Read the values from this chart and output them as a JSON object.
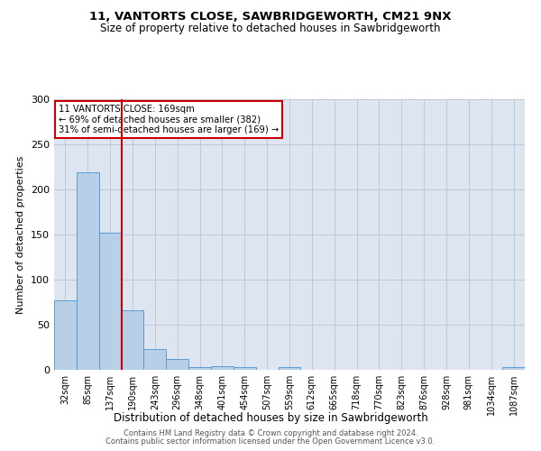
{
  "title1": "11, VANTORTS CLOSE, SAWBRIDGEWORTH, CM21 9NX",
  "title2": "Size of property relative to detached houses in Sawbridgeworth",
  "xlabel": "Distribution of detached houses by size in Sawbridgeworth",
  "ylabel": "Number of detached properties",
  "bar_color": "#b8cfe8",
  "bar_edge_color": "#5b9bd5",
  "grid_color": "#c0c8d8",
  "background_color": "#dde5f0",
  "bins": [
    "32sqm",
    "85sqm",
    "137sqm",
    "190sqm",
    "243sqm",
    "296sqm",
    "348sqm",
    "401sqm",
    "454sqm",
    "507sqm",
    "559sqm",
    "612sqm",
    "665sqm",
    "718sqm",
    "770sqm",
    "823sqm",
    "876sqm",
    "928sqm",
    "981sqm",
    "1034sqm",
    "1087sqm"
  ],
  "values": [
    77,
    219,
    152,
    66,
    23,
    12,
    3,
    4,
    3,
    0,
    3,
    0,
    0,
    0,
    0,
    0,
    0,
    0,
    0,
    0,
    3
  ],
  "red_line_x": 2.5,
  "red_line_label1": "11 VANTORTS CLOSE: 169sqm",
  "red_line_label2": "← 69% of detached houses are smaller (382)",
  "red_line_label3": "31% of semi-detached houses are larger (169) →",
  "annotation_box_color": "#ffffff",
  "annotation_border_color": "#cc0000",
  "vline_color": "#cc0000",
  "ylim": [
    0,
    300
  ],
  "yticks": [
    0,
    50,
    100,
    150,
    200,
    250,
    300
  ],
  "footer1": "Contains HM Land Registry data © Crown copyright and database right 2024.",
  "footer2": "Contains public sector information licensed under the Open Government Licence v3.0."
}
